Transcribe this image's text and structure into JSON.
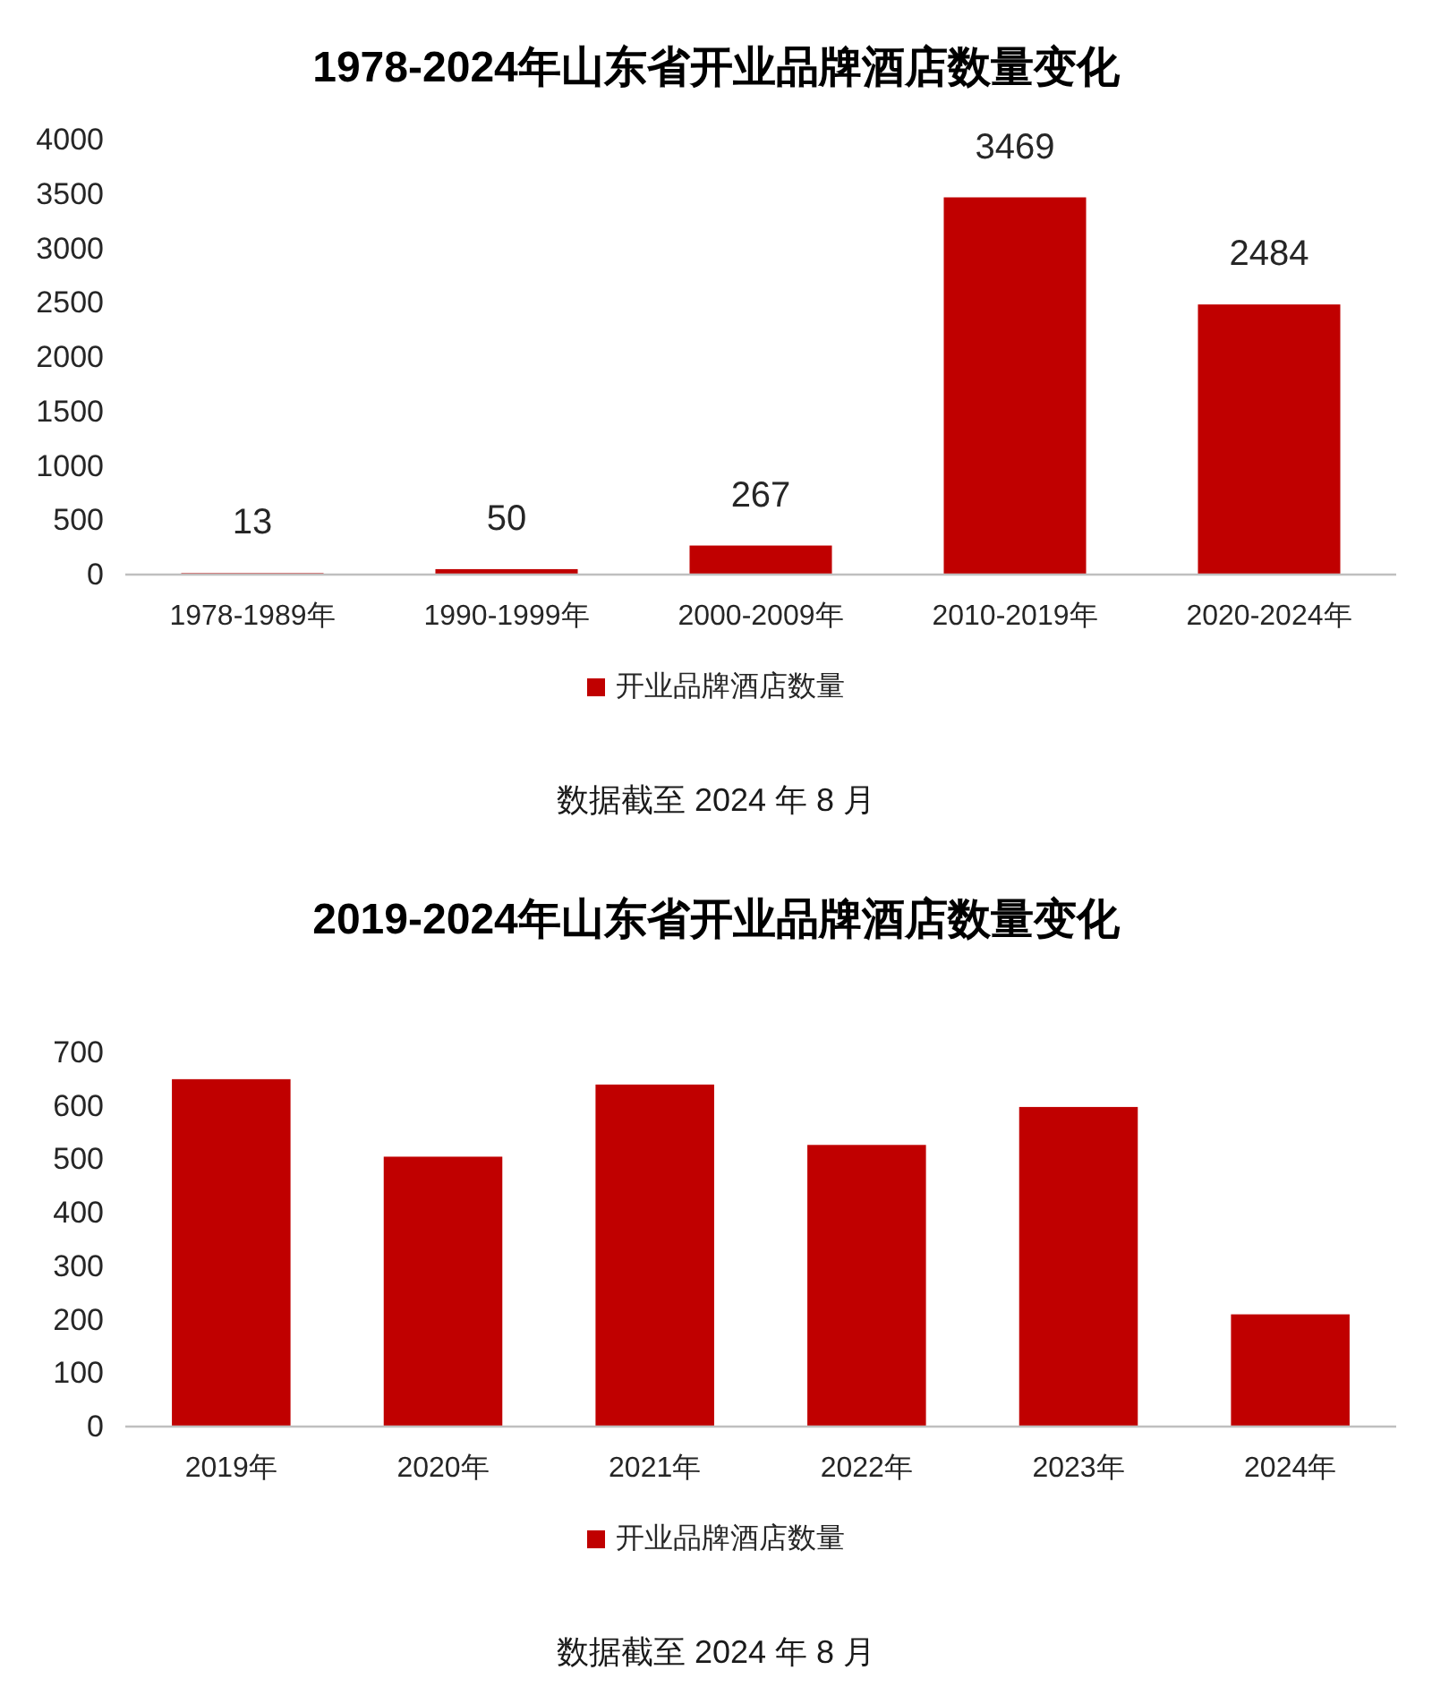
{
  "chart_data": [
    {
      "type": "bar",
      "title": "1978-2024年山东省开业品牌酒店数量变化",
      "categories": [
        "1978-1989年",
        "1990-1999年",
        "2000-2009年",
        "2010-2019年",
        "2020-2024年"
      ],
      "series": [
        {
          "name": "开业品牌酒店数量",
          "color": "#c00000",
          "values": [
            13,
            50,
            267,
            3469,
            2484
          ]
        }
      ],
      "ylim": [
        0,
        4000
      ],
      "yticks": [
        0,
        500,
        1000,
        1500,
        2000,
        2500,
        3000,
        3500,
        4000
      ],
      "data_labels": true,
      "legend": "bottom",
      "annotations": [
        "数据截至 2024 年 8 月"
      ]
    },
    {
      "type": "bar",
      "title": "2019-2024年山东省开业品牌酒店数量变化",
      "categories": [
        "2019年",
        "2020年",
        "2021年",
        "2022年",
        "2023年",
        "2024年"
      ],
      "series": [
        {
          "name": "开业品牌酒店数量",
          "color": "#c00000",
          "values": [
            650,
            505,
            640,
            527,
            598,
            210
          ]
        }
      ],
      "ylim": [
        0,
        700
      ],
      "yticks": [
        0,
        100,
        200,
        300,
        400,
        500,
        600,
        700
      ],
      "legend": "bottom",
      "annotations": [
        "数据截至 2024 年 8 月"
      ]
    }
  ]
}
